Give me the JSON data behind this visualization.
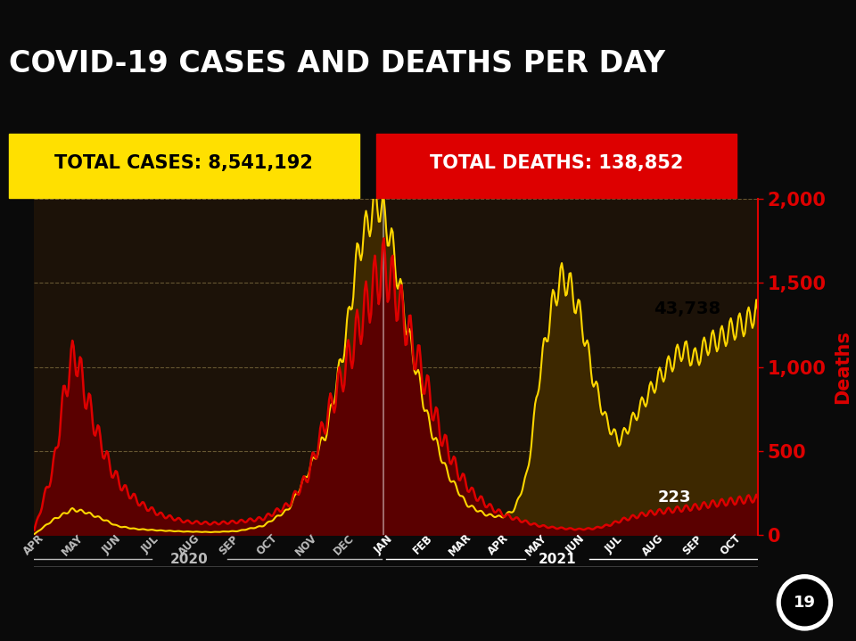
{
  "title": "COVID-19 CASES AND DEATHS PER DAY",
  "total_cases_label": "TOTAL CASES: 8,541,192",
  "total_deaths_label": "TOTAL DEATHS: 138,852",
  "last_cases_value": "43,738",
  "last_deaths_value": "223",
  "bg_color": "#1a1008",
  "bg_chart_color": "#2a1a0a",
  "line_color_cases": "#FFD700",
  "line_color_deaths": "#DD0000",
  "fill_color_cases": "#8B6914",
  "fill_color_deaths": "#6B0000",
  "right_axis_label": "Deaths",
  "right_axis_color": "#DD0000",
  "x_labels_2020": [
    "APR",
    "MAY",
    "JUN",
    "JUL",
    "AUG",
    "SEP",
    "OCT",
    "NOV",
    "DEC"
  ],
  "x_labels_2021": [
    "JAN",
    "FEB",
    "MAR",
    "APR",
    "MAY",
    "JUN",
    "JUL",
    "AUG",
    "SEP",
    "OCT"
  ],
  "year_label_2020": "2020",
  "year_label_2021": "2021",
  "deaths_ylim": [
    0,
    2000
  ],
  "deaths_yticks": [
    0,
    500,
    1000,
    1500,
    2000
  ],
  "grid_color": "#888855",
  "badge_number": "19",
  "cases_scale": 43738,
  "deaths_scale": 2000
}
